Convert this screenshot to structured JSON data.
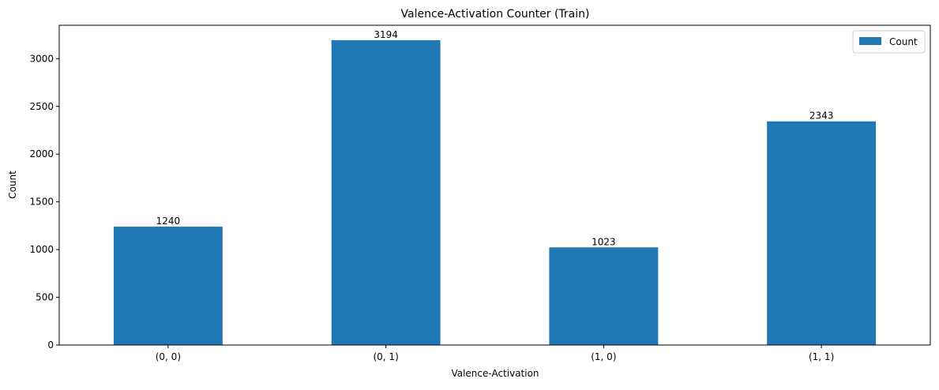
{
  "chart_data": {
    "type": "bar",
    "title": "Valence-Activation Counter (Train)",
    "xlabel": "Valence-Activation",
    "ylabel": "Count",
    "categories": [
      "(0, 0)",
      "(0, 1)",
      "(1, 0)",
      "(1, 1)"
    ],
    "series": [
      {
        "name": "Count",
        "values": [
          1240,
          3194,
          1023,
          2343
        ],
        "color": "#1f77b4"
      }
    ],
    "data_labels": [
      "1240",
      "3194",
      "1023",
      "2343"
    ],
    "ylim": [
      0,
      3350
    ],
    "yticks": [
      0,
      500,
      1000,
      1500,
      2000,
      2500,
      3000
    ],
    "ytick_labels": [
      "0",
      "500",
      "1000",
      "1500",
      "2000",
      "2500",
      "3000"
    ],
    "grid": false,
    "legend": {
      "position": "top-right",
      "entries": [
        "Count"
      ]
    }
  }
}
